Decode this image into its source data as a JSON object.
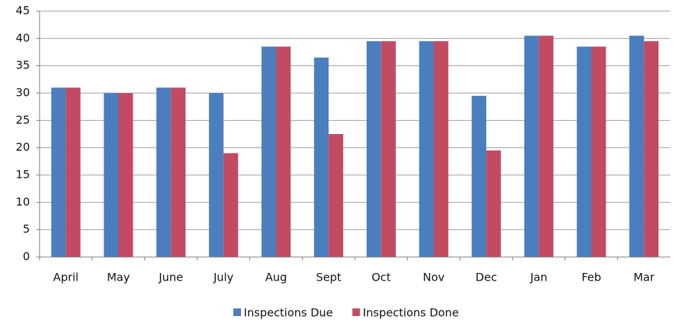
{
  "chart_data": {
    "type": "bar",
    "categories": [
      "April",
      "May",
      "June",
      "July",
      "Aug",
      "Sept",
      "Oct",
      "Nov",
      "Dec",
      "Jan",
      "Feb",
      "Mar"
    ],
    "series": [
      {
        "name": "Inspections Due",
        "color": "#4a7ebf",
        "values": [
          31,
          30,
          31,
          30,
          38.5,
          36.5,
          39.5,
          39.5,
          29.5,
          40.5,
          38.5,
          40.5
        ]
      },
      {
        "name": "Inspections Done",
        "color": "#c24b62",
        "values": [
          31,
          30,
          31,
          19,
          38.5,
          22.5,
          39.5,
          39.5,
          19.5,
          40.5,
          38.5,
          39.5
        ]
      }
    ],
    "ylim": [
      0,
      45
    ],
    "yticks": [
      0,
      5,
      10,
      15,
      20,
      25,
      30,
      35,
      40,
      45
    ],
    "grid": true,
    "legend": "bottom"
  }
}
